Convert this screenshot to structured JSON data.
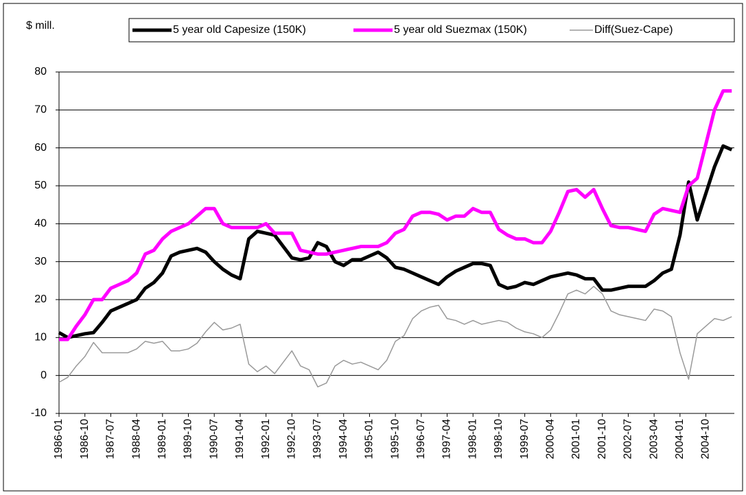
{
  "chart_data": {
    "type": "line",
    "y_label": "$ mill.",
    "x": [
      "1986-01",
      "1986-04",
      "1986-07",
      "1986-10",
      "1987-01",
      "1987-04",
      "1987-07",
      "1987-10",
      "1988-01",
      "1988-04",
      "1988-07",
      "1988-10",
      "1989-01",
      "1989-04",
      "1989-07",
      "1989-10",
      "1990-01",
      "1990-04",
      "1990-07",
      "1990-10",
      "1991-01",
      "1991-04",
      "1991-07",
      "1991-10",
      "1992-01",
      "1992-04",
      "1992-07",
      "1992-10",
      "1993-01",
      "1993-04",
      "1993-07",
      "1993-10",
      "1994-01",
      "1994-04",
      "1994-07",
      "1994-10",
      "1995-01",
      "1995-04",
      "1995-07",
      "1995-10",
      "1996-01",
      "1996-04",
      "1996-07",
      "1996-10",
      "1997-01",
      "1997-04",
      "1997-07",
      "1997-10",
      "1998-01",
      "1998-04",
      "1998-07",
      "1998-10",
      "1999-01",
      "1999-04",
      "1999-07",
      "1999-10",
      "2000-01",
      "2000-04",
      "2000-07",
      "2000-10",
      "2001-01",
      "2001-04",
      "2001-07",
      "2001-10",
      "2002-01",
      "2002-04",
      "2002-07",
      "2002-10",
      "2003-01",
      "2003-04",
      "2003-07",
      "2003-10",
      "2004-01",
      "2004-04",
      "2004-07",
      "2004-10",
      "2005-01",
      "2005-04",
      "2005-07"
    ],
    "xticks": [
      "1986-01",
      "1986-10",
      "1987-07",
      "1988-04",
      "1989-01",
      "1989-10",
      "1990-07",
      "1991-04",
      "1992-01",
      "1992-10",
      "1993-07",
      "1994-04",
      "1995-01",
      "1995-10",
      "1996-07",
      "1997-04",
      "1998-01",
      "1998-10",
      "1999-07",
      "2000-04",
      "2001-01",
      "2001-10",
      "2002-07",
      "2003-04",
      "2004-01",
      "2004-10"
    ],
    "ylim": [
      -10,
      80
    ],
    "yticks": [
      -10,
      0,
      10,
      20,
      30,
      40,
      50,
      60,
      70,
      80
    ],
    "grid": true,
    "legend": "top",
    "series": [
      {
        "name": "5 year old Capesize (150K)",
        "color": "#000000",
        "values": [
          11.3,
          10,
          10.5,
          11,
          11.3,
          14,
          17,
          18,
          19,
          20,
          23,
          24.5,
          27,
          31.5,
          32.5,
          33,
          33.5,
          32.5,
          30,
          28,
          26.5,
          25.5,
          36,
          38,
          37.5,
          37,
          34,
          31,
          30.5,
          31,
          35,
          34,
          30,
          29,
          30.5,
          30.5,
          31.5,
          32.5,
          31,
          28.5,
          28,
          27,
          26,
          25,
          24,
          26,
          27.5,
          28.5,
          29.5,
          29.5,
          29,
          24,
          23,
          23.5,
          24.5,
          24,
          25,
          26,
          26.5,
          27,
          26.5,
          25.5,
          25.5,
          22.5,
          22.5,
          23,
          23.5,
          23.5,
          23.5,
          25,
          27,
          28,
          37,
          51,
          41,
          48,
          55,
          60.5,
          59.5
        ]
      },
      {
        "name": "5 year old Suezmax (150K)",
        "color": "#ff00ff",
        "values": [
          9.5,
          9.5,
          13,
          16,
          20,
          20,
          23,
          24,
          25,
          27,
          32,
          33,
          36,
          38,
          39,
          40,
          42,
          44,
          44,
          40,
          39,
          39,
          39,
          39,
          40,
          37.5,
          37.5,
          37.5,
          33,
          32.5,
          32,
          32,
          32.5,
          33,
          33.5,
          34,
          34,
          34,
          35,
          37.5,
          38.5,
          42,
          43,
          43,
          42.5,
          41,
          42,
          42,
          44,
          43,
          43,
          38.5,
          37,
          36,
          36,
          35,
          35,
          38,
          43,
          48.5,
          49,
          47,
          49,
          44,
          39.5,
          39,
          39,
          38.5,
          38,
          42.5,
          44,
          43.5,
          43,
          50,
          52,
          61,
          70,
          75,
          75
        ]
      },
      {
        "name": "Diff(Suez-Cape)",
        "color": "#999999",
        "values": [
          -1.8,
          -0.5,
          2.5,
          5,
          8.7,
          6,
          6,
          6,
          6,
          7,
          9,
          8.5,
          9,
          6.5,
          6.5,
          7,
          8.5,
          11.5,
          14,
          12,
          12.5,
          13.5,
          3,
          1,
          2.5,
          0.5,
          3.5,
          6.5,
          2.5,
          1.5,
          -3,
          -2,
          2.5,
          4,
          3,
          3.5,
          2.5,
          1.5,
          4,
          9,
          10.5,
          15,
          17,
          18,
          18.5,
          15,
          14.5,
          13.5,
          14.5,
          13.5,
          14,
          14.5,
          14,
          12.5,
          11.5,
          11,
          10,
          12,
          16.5,
          21.5,
          22.5,
          21.5,
          23.5,
          21.5,
          17,
          16,
          15.5,
          15,
          14.5,
          17.5,
          17,
          15.5,
          6,
          -1,
          11,
          13,
          15,
          14.5,
          15.5
        ]
      }
    ]
  }
}
